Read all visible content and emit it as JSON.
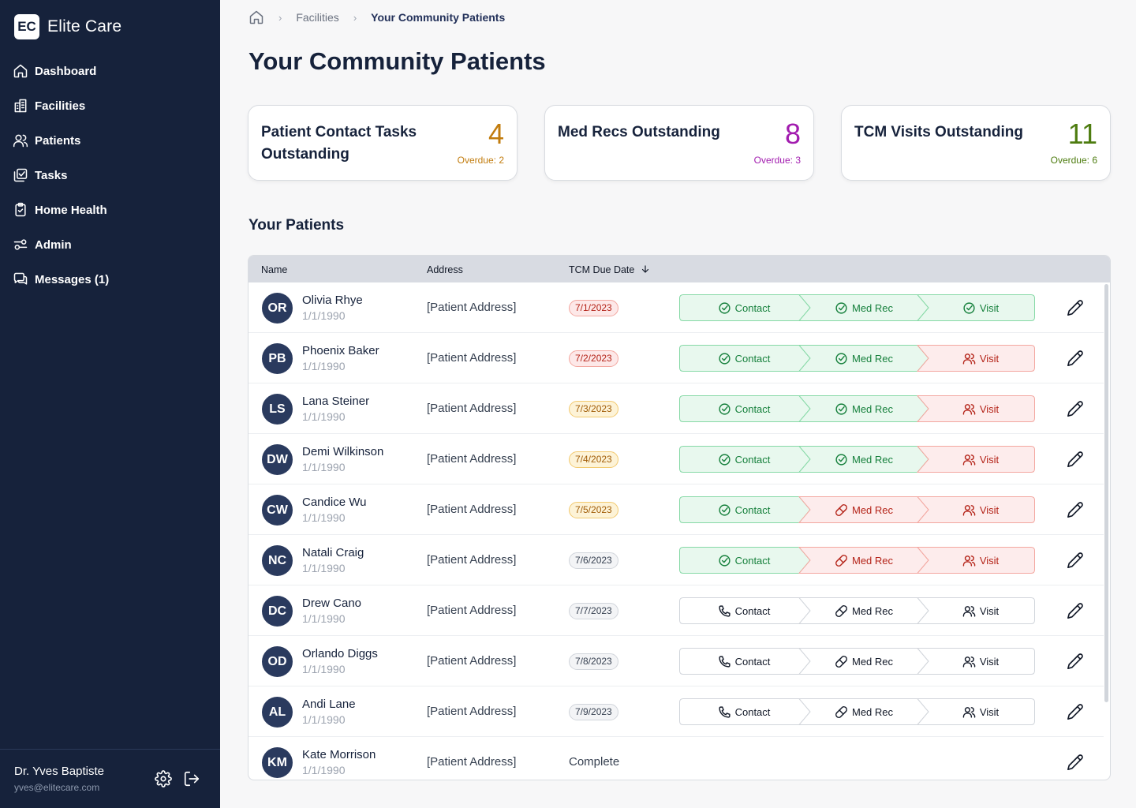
{
  "app": {
    "logo": "EC",
    "name": "Elite Care"
  },
  "nav": [
    {
      "label": "Dashboard",
      "icon": "home-icon"
    },
    {
      "label": "Facilities",
      "icon": "building-icon"
    },
    {
      "label": "Patients",
      "icon": "users-icon"
    },
    {
      "label": "Tasks",
      "icon": "tasks-icon"
    },
    {
      "label": "Home Health",
      "icon": "clipboard-check-icon"
    },
    {
      "label": "Admin",
      "icon": "sliders-icon"
    },
    {
      "label": "Messages (1)",
      "icon": "messages-icon"
    }
  ],
  "user": {
    "name": "Dr. Yves Baptiste",
    "email": "yves@elitecare.com"
  },
  "breadcrumb": {
    "link": "Facilities",
    "current": "Your Community Patients"
  },
  "page_title": "Your Community Patients",
  "cards": [
    {
      "title": "Patient Contact Tasks Outstanding",
      "count": "4",
      "overdue": "Overdue: 2",
      "color": "#c27c0e"
    },
    {
      "title": "Med Recs Outstanding",
      "count": "8",
      "overdue": "Overdue: 3",
      "color": "#a21caf"
    },
    {
      "title": "TCM Visits Outstanding",
      "count": "11",
      "overdue": "Overdue: 6",
      "color": "#4d7c0f"
    }
  ],
  "section_title": "Your Patients",
  "table": {
    "headers": {
      "name": "Name",
      "address": "Address",
      "due": "TCM Due Date"
    },
    "step_labels": {
      "contact": "Contact",
      "medrec": "Med Rec",
      "visit": "Visit"
    },
    "rows": [
      {
        "initials": "OR",
        "name": "Olivia Rhye",
        "dob": "1/1/1990",
        "address": "[Patient Address]",
        "due": "7/1/2023",
        "due_tone": "red",
        "contact": "done",
        "medrec": "done",
        "visit": "done"
      },
      {
        "initials": "PB",
        "name": "Phoenix Baker",
        "dob": "1/1/1990",
        "address": "[Patient Address]",
        "due": "7/2/2023",
        "due_tone": "red",
        "contact": "done",
        "medrec": "done",
        "visit": "overdue"
      },
      {
        "initials": "LS",
        "name": "Lana Steiner",
        "dob": "1/1/1990",
        "address": "[Patient Address]",
        "due": "7/3/2023",
        "due_tone": "amber",
        "contact": "done",
        "medrec": "done",
        "visit": "overdue"
      },
      {
        "initials": "DW",
        "name": "Demi Wilkinson",
        "dob": "1/1/1990",
        "address": "[Patient Address]",
        "due": "7/4/2023",
        "due_tone": "amber",
        "contact": "done",
        "medrec": "done",
        "visit": "overdue"
      },
      {
        "initials": "CW",
        "name": "Candice Wu",
        "dob": "1/1/1990",
        "address": "[Patient Address]",
        "due": "7/5/2023",
        "due_tone": "amber",
        "contact": "done",
        "medrec": "overdue",
        "visit": "overdue"
      },
      {
        "initials": "NC",
        "name": "Natali Craig",
        "dob": "1/1/1990",
        "address": "[Patient Address]",
        "due": "7/6/2023",
        "due_tone": "gray",
        "contact": "done",
        "medrec": "overdue",
        "visit": "overdue"
      },
      {
        "initials": "DC",
        "name": "Drew Cano",
        "dob": "1/1/1990",
        "address": "[Patient Address]",
        "due": "7/7/2023",
        "due_tone": "gray",
        "contact": "pending",
        "medrec": "pending",
        "visit": "pending"
      },
      {
        "initials": "OD",
        "name": "Orlando Diggs",
        "dob": "1/1/1990",
        "address": "[Patient Address]",
        "due": "7/8/2023",
        "due_tone": "gray",
        "contact": "pending",
        "medrec": "pending",
        "visit": "pending"
      },
      {
        "initials": "AL",
        "name": "Andi Lane",
        "dob": "1/1/1990",
        "address": "[Patient Address]",
        "due": "7/9/2023",
        "due_tone": "gray",
        "contact": "pending",
        "medrec": "pending",
        "visit": "pending"
      },
      {
        "initials": "KM",
        "name": "Kate Morrison",
        "dob": "1/1/1990",
        "address": "[Patient Address]",
        "complete": "Complete"
      }
    ]
  },
  "colors": {
    "sidebar": "#16223b",
    "done_bg": "#e8f8ee",
    "done_border": "#86d9a6",
    "done_text": "#16803c",
    "overdue_bg": "#fdecec",
    "overdue_border": "#f3a7a0",
    "overdue_text": "#b42318",
    "pending_bg": "#ffffff",
    "pending_border": "#d1d5db",
    "pending_text": "#111827"
  }
}
